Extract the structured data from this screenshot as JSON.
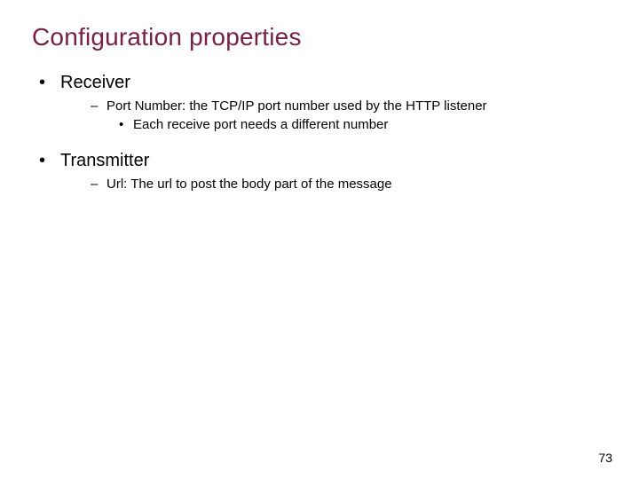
{
  "colors": {
    "title": "#7a1f3d",
    "body": "#000000",
    "background": "#ffffff"
  },
  "fontsizes": {
    "title": 28,
    "level1": 20,
    "level2": 15,
    "level3": 15,
    "pagenum": 14
  },
  "title": "Configuration properties",
  "bullets": {
    "receiver": {
      "label": "Receiver",
      "sub1": "Port Number: the TCP/IP port number used by the HTTP listener",
      "sub1a": "Each receive port needs a different number"
    },
    "transmitter": {
      "label": "Transmitter",
      "sub1": "Url: The url to post the body part of the message"
    }
  },
  "glyphs": {
    "bullet": "•",
    "dash": "–",
    "dot": "•"
  },
  "page_number": "73"
}
